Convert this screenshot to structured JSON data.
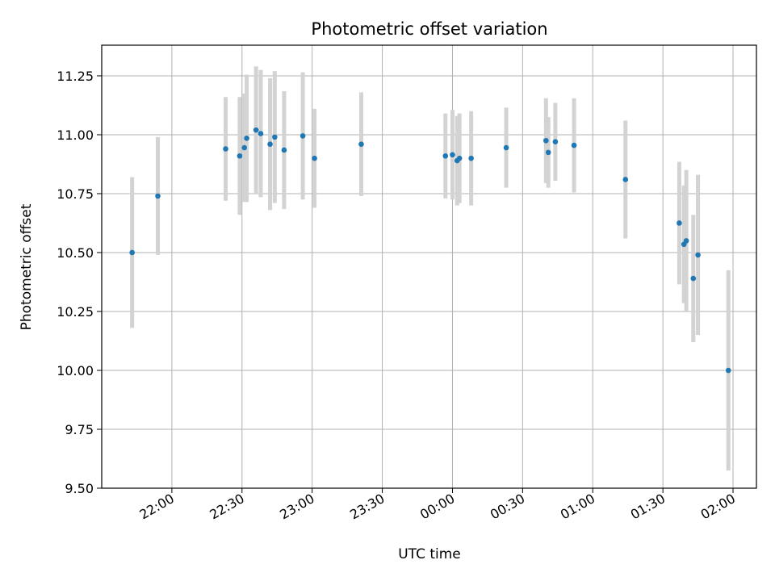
{
  "chart_data": {
    "type": "scatter",
    "title": "Photometric offset variation",
    "xlabel": "UTC time",
    "ylabel": "Photometric offset",
    "x_unit": "UTC time (HH:MM)",
    "xlim": [
      "21:30",
      "02:10"
    ],
    "ylim": [
      9.5,
      11.38
    ],
    "x_ticks": [
      "22:00",
      "22:30",
      "23:00",
      "23:30",
      "00:00",
      "00:30",
      "01:00",
      "01:30",
      "02:00"
    ],
    "y_ticks": [
      "9.50",
      "9.75",
      "10.00",
      "10.25",
      "10.50",
      "10.75",
      "11.00",
      "11.25"
    ],
    "grid": true,
    "point_color": "#1f77b4",
    "errorbar_color": "#d3d3d3",
    "points": [
      {
        "t": "21:43",
        "y": 10.5,
        "err": 0.32
      },
      {
        "t": "21:54",
        "y": 10.74,
        "err": 0.25
      },
      {
        "t": "22:23",
        "y": 10.94,
        "err": 0.22
      },
      {
        "t": "22:29",
        "y": 10.91,
        "err": 0.25
      },
      {
        "t": "22:31",
        "y": 10.945,
        "err": 0.23
      },
      {
        "t": "22:32",
        "y": 10.985,
        "err": 0.27
      },
      {
        "t": "22:36",
        "y": 11.02,
        "err": 0.27
      },
      {
        "t": "22:38",
        "y": 11.005,
        "err": 0.27
      },
      {
        "t": "22:42",
        "y": 10.96,
        "err": 0.28
      },
      {
        "t": "22:44",
        "y": 10.99,
        "err": 0.28
      },
      {
        "t": "22:48",
        "y": 10.935,
        "err": 0.25
      },
      {
        "t": "22:56",
        "y": 10.995,
        "err": 0.27
      },
      {
        "t": "23:01",
        "y": 10.9,
        "err": 0.21
      },
      {
        "t": "23:21",
        "y": 10.96,
        "err": 0.22
      },
      {
        "t": "23:57",
        "y": 10.91,
        "err": 0.18
      },
      {
        "t": "00:00",
        "y": 10.915,
        "err": 0.19
      },
      {
        "t": "00:02",
        "y": 10.89,
        "err": 0.19
      },
      {
        "t": "00:03",
        "y": 10.9,
        "err": 0.19
      },
      {
        "t": "00:08",
        "y": 10.9,
        "err": 0.2
      },
      {
        "t": "00:23",
        "y": 10.945,
        "err": 0.17
      },
      {
        "t": "00:40",
        "y": 10.975,
        "err": 0.18
      },
      {
        "t": "00:41",
        "y": 10.925,
        "err": 0.15
      },
      {
        "t": "00:44",
        "y": 10.97,
        "err": 0.165
      },
      {
        "t": "00:52",
        "y": 10.955,
        "err": 0.2
      },
      {
        "t": "01:14",
        "y": 10.81,
        "err": 0.25
      },
      {
        "t": "01:37",
        "y": 10.625,
        "err": 0.26
      },
      {
        "t": "01:39",
        "y": 10.535,
        "err": 0.25
      },
      {
        "t": "01:40",
        "y": 10.55,
        "err": 0.3
      },
      {
        "t": "01:43",
        "y": 10.39,
        "err": 0.27
      },
      {
        "t": "01:45",
        "y": 10.49,
        "err": 0.34
      },
      {
        "t": "01:58",
        "y": 10.0,
        "err": 0.425
      }
    ]
  }
}
